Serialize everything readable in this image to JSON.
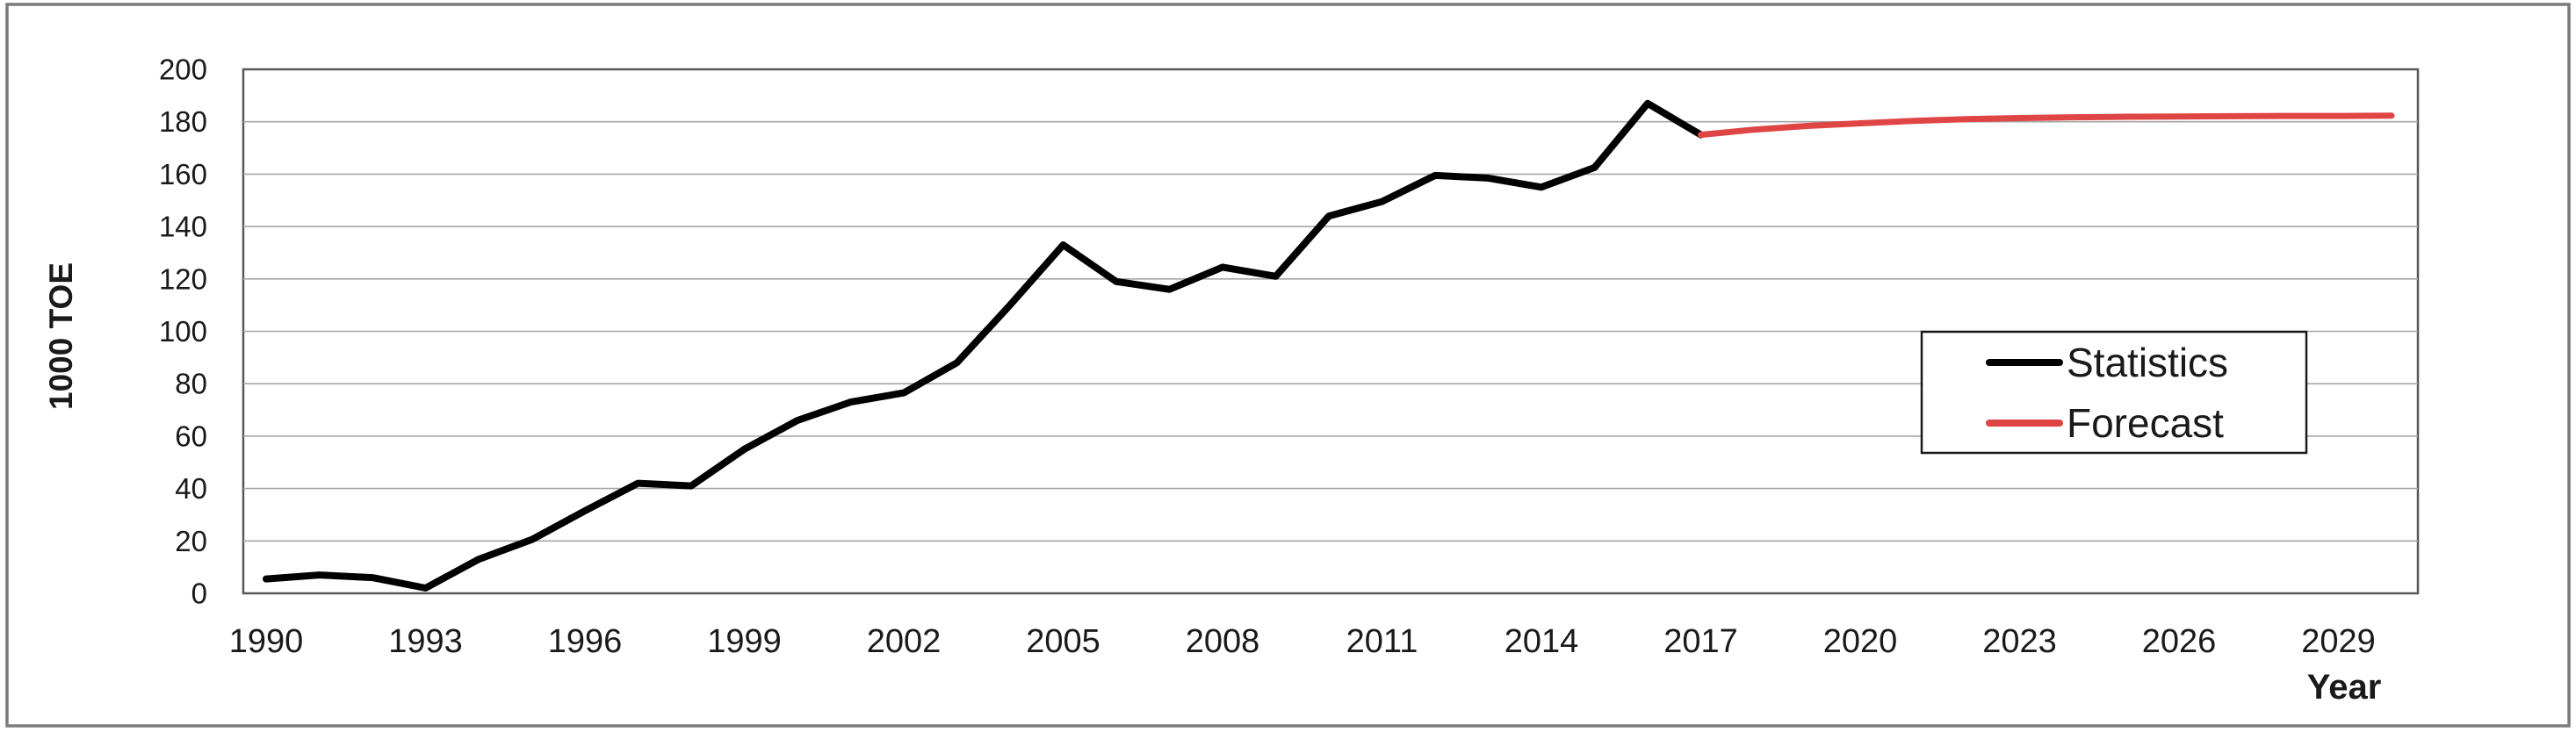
{
  "chart_data": {
    "type": "line",
    "title": "",
    "xlabel": "Year",
    "ylabel": "1000 TOE",
    "ylim": [
      0,
      200
    ],
    "xlim": [
      1990,
      2030
    ],
    "y_ticks": [
      0,
      20,
      40,
      60,
      80,
      100,
      120,
      140,
      160,
      180,
      200
    ],
    "x_ticks": [
      1990,
      1993,
      1996,
      1999,
      2002,
      2005,
      2008,
      2011,
      2014,
      2017,
      2020,
      2023,
      2026,
      2029
    ],
    "grid": "horizontal-only",
    "legend_position": "inside-right-middle",
    "series": [
      {
        "name": "Statistics",
        "color": "#000000",
        "line_width": 8,
        "x": [
          1990,
          1991,
          1992,
          1993,
          1994,
          1995,
          1996,
          1997,
          1998,
          1999,
          2000,
          2001,
          2002,
          2003,
          2004,
          2005,
          2006,
          2007,
          2008,
          2009,
          2010,
          2011,
          2012,
          2013,
          2014,
          2015,
          2016,
          2017
        ],
        "values": [
          5.5,
          7,
          6,
          2,
          13,
          20.5,
          31.5,
          42,
          41,
          55,
          66,
          73,
          76.5,
          88,
          110,
          133,
          119,
          116,
          124.5,
          121,
          144,
          149.5,
          159.5,
          158.5,
          155,
          162.5,
          187,
          175
        ]
      },
      {
        "name": "Forecast",
        "color": "#e04545",
        "line_width": 7,
        "x": [
          2017,
          2018,
          2019,
          2020,
          2021,
          2022,
          2023,
          2024,
          2025,
          2026,
          2027,
          2028,
          2029,
          2030
        ],
        "values": [
          175,
          177,
          178.4,
          179.4,
          180.3,
          181,
          181.4,
          181.7,
          181.9,
          182,
          182.1,
          182.2,
          182.2,
          182.3
        ]
      }
    ]
  },
  "colors": {
    "statistics_line": "#000000",
    "forecast_line": "#e04545",
    "gridline": "#a6a6a6",
    "plot_border": "#595959",
    "outer_frame": "#7a7a7a",
    "text": "#1a1a1a"
  }
}
